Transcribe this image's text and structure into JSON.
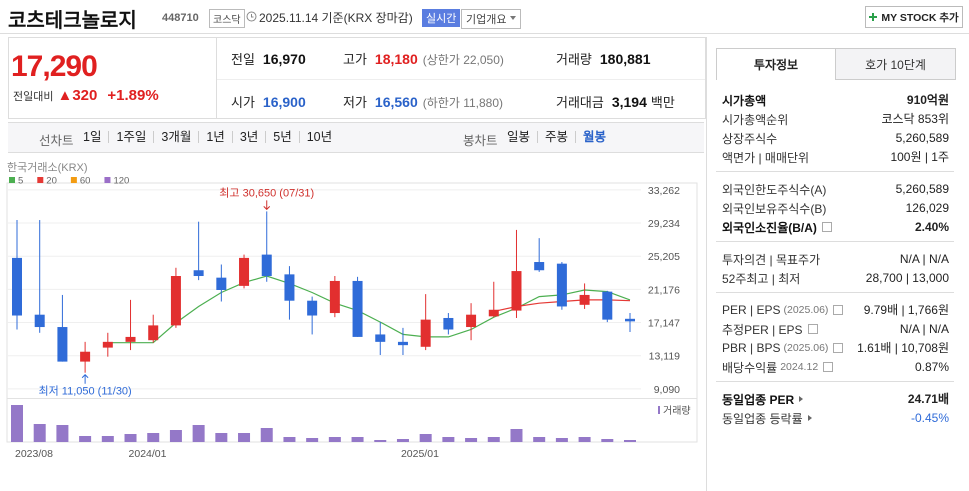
{
  "header": {
    "name": "코츠테크놀로지",
    "code": "448710",
    "market": "코스닥",
    "date": "2025.11.14",
    "basis": "기준(KRX 장마감)",
    "realtime": "실시간",
    "overview": "기업개요",
    "mystock": "MY STOCK 추가"
  },
  "quote": {
    "price": "17,290",
    "change_label": "전일대비",
    "change": "▲320",
    "change_rate": "+1.89%",
    "color": "#e02020",
    "fields": [
      {
        "label": "전일",
        "value": "16,970",
        "color": "#111111"
      },
      {
        "label": "고가",
        "value": "18,180",
        "extra": "(상한가 22,050)",
        "color": "#e02020"
      },
      {
        "label": "거래량",
        "value": "180,881",
        "color": "#111111"
      },
      {
        "label": "시가",
        "value": "16,900",
        "color": "#2a62c9"
      },
      {
        "label": "저가",
        "value": "16,560",
        "extra": "(하한가 11,880)",
        "color": "#2a62c9"
      },
      {
        "label": "거래대금",
        "value": "3,194",
        "unit": "백만",
        "color": "#111111"
      }
    ]
  },
  "periods": {
    "line_label": "선차트",
    "line": [
      "1일",
      "1주일",
      "3개월",
      "1년",
      "3년",
      "5년",
      "10년"
    ],
    "candle_label": "봉차트",
    "candle": [
      "일봉",
      "주봉",
      "월봉"
    ],
    "selected_index": 2
  },
  "chart_data": {
    "type": "candlestick",
    "source": "한국거래소(KRX)",
    "categories": [
      "2023/08",
      null,
      null,
      null,
      null,
      "2024/01",
      null,
      null,
      null,
      null,
      null,
      null,
      null,
      null,
      null,
      null,
      null,
      "2025/01",
      null,
      null,
      null,
      null,
      null,
      null,
      null,
      null,
      null,
      null
    ],
    "open": [
      25000,
      18100,
      16600,
      12400,
      14100,
      14800,
      15000,
      16800,
      23500,
      22600,
      21600,
      25400,
      23000,
      19800,
      18300,
      22200,
      15700,
      14800,
      14200,
      17700,
      16600,
      17900,
      18600,
      24500,
      24300,
      19300,
      20900,
      17600
    ],
    "high": [
      29600,
      29600,
      20500,
      14800,
      15900,
      19900,
      18100,
      23800,
      29400,
      24200,
      25400,
      30650,
      24000,
      20300,
      22800,
      22700,
      17200,
      16500,
      20600,
      18300,
      19500,
      22100,
      28400,
      27400,
      24500,
      21900,
      21000,
      18300
    ],
    "low": [
      16300,
      15900,
      12400,
      11050,
      13000,
      13800,
      14700,
      16500,
      22300,
      19700,
      21300,
      22100,
      17500,
      15700,
      17800,
      15400,
      13200,
      13200,
      13800,
      15700,
      15000,
      17800,
      17700,
      23300,
      18700,
      18800,
      17200,
      16000
    ],
    "close": [
      18000,
      16600,
      12400,
      13600,
      14800,
      15400,
      16800,
      22800,
      22800,
      21100,
      25000,
      22800,
      19800,
      18000,
      22200,
      15400,
      14800,
      14400,
      17500,
      16300,
      18100,
      18700,
      23400,
      23500,
      19100,
      20500,
      17500,
      17290
    ],
    "up_color": "#e22f2f",
    "down_color": "#2f6bd8",
    "series": [
      {
        "name": "5",
        "color": "#4caf50",
        "values": [
          null,
          null,
          null,
          null,
          14700,
          14700,
          14700,
          17100,
          19100,
          20800,
          22000,
          22800,
          21900,
          20800,
          19500,
          18600,
          17200,
          15700,
          15400,
          15400,
          16300,
          17800,
          18900,
          20300,
          20500,
          21100,
          20900,
          19900
        ]
      },
      {
        "name": "20",
        "color": "#e53935",
        "values": [
          null,
          null,
          null,
          null,
          null,
          null,
          null,
          null,
          null,
          null,
          null,
          null,
          null,
          null,
          null,
          null,
          null,
          null,
          null,
          null,
          null,
          18500,
          19100,
          19500,
          19700,
          19900,
          19900,
          19800
        ]
      },
      {
        "name": "60",
        "color": "#f39c12"
      },
      {
        "name": "120",
        "color": "#9b6fc8"
      }
    ],
    "volume": [
      9250000,
      4500000,
      4250000,
      1500000,
      1500000,
      2000000,
      2250000,
      3000000,
      4250000,
      2250000,
      2250000,
      3500000,
      1250000,
      1000000,
      1250000,
      1250000,
      500000,
      750000,
      2000000,
      1250000,
      1000000,
      1250000,
      3250000,
      1250000,
      1000000,
      1250000,
      750000,
      500000
    ],
    "volume_label": "거래량",
    "volume_color": "#9478c8",
    "ylim": [
      8100,
      34100
    ],
    "yticks": [
      {
        "value": 33262,
        "label": "33,262"
      },
      {
        "value": 29234,
        "label": "29,234"
      },
      {
        "value": 25205,
        "label": "25,205"
      },
      {
        "value": 21176,
        "label": "21,176"
      },
      {
        "value": 17147,
        "label": "17,147"
      },
      {
        "value": 13119,
        "label": "13,119"
      },
      {
        "value": 9090,
        "label": "9,090"
      }
    ],
    "grid": true,
    "high_label": "최고 30,650 (07/31)",
    "low_label": "최저 11,050 (11/30)"
  },
  "info": {
    "tabs": [
      "투자정보",
      "호가 10단계"
    ],
    "sections": [
      [
        {
          "label": "시가총액",
          "value": "910억원",
          "bold": true
        },
        {
          "label": "시가총액순위",
          "value": "코스닥 853위"
        },
        {
          "label": "상장주식수",
          "value": "5,260,589"
        },
        {
          "label": "액면가 | 매매단위",
          "value": "100원 | 1주"
        }
      ],
      [
        {
          "label": "외국인한도주식수(A)",
          "value": "5,260,589"
        },
        {
          "label": "외국인보유주식수(B)",
          "value": "126,029"
        },
        {
          "label": "외국인소진율(B/A)",
          "value": "2.40%",
          "bold": true,
          "help": true
        }
      ],
      [
        {
          "label": "투자의견 | 목표주가",
          "value": "N/A | N/A"
        },
        {
          "label": "52주최고 | 최저",
          "value": "28,700 | 13,000"
        }
      ],
      [
        {
          "label": "PER | EPS",
          "sub": "(2025.06)",
          "value": "9.79배 | 1,766원",
          "help": true
        },
        {
          "label": "추정PER | EPS",
          "value": "N/A | N/A",
          "help": true
        },
        {
          "label": "PBR | BPS",
          "sub": "(2025.06)",
          "value": "1.61배 | 10,708원",
          "help": true
        },
        {
          "label": "배당수익률",
          "sub": "2024.12",
          "value": "0.87%",
          "help": true
        }
      ],
      [
        {
          "label": "동일업종 PER",
          "value": "24.71배",
          "bold": true,
          "arrow": true
        },
        {
          "label": "동일업종 등락률",
          "value": "-0.45%",
          "arrow": true,
          "value_color": "#2f6bd8"
        }
      ]
    ]
  }
}
